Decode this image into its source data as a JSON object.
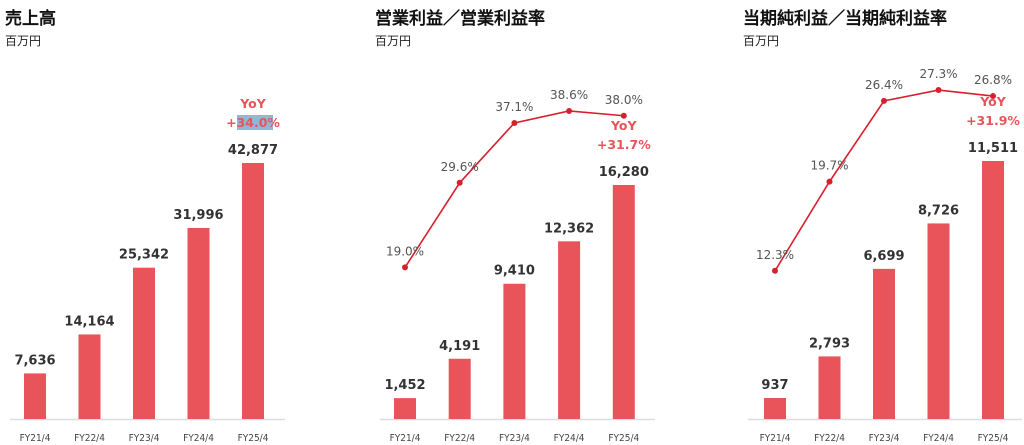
{
  "colors": {
    "bar": "#e8545a",
    "line": "#d7202e",
    "axis": "#dddddd",
    "highlight": "#8fb8d8"
  },
  "chart_data": [
    {
      "type": "bar",
      "title": "売上高",
      "unit": "百万円",
      "categories": [
        "FY21/4",
        "FY22/4",
        "FY23/4",
        "FY24/4",
        "FY25/4"
      ],
      "values": [
        7636,
        14164,
        25342,
        31996,
        42877
      ],
      "value_labels": [
        "7,636",
        "14,164",
        "25,342",
        "31,996",
        "42,877"
      ],
      "yoy_label": "YoY",
      "yoy_value": "+34.0%"
    },
    {
      "type": "bar+line",
      "title": "営業利益／営業利益率",
      "unit": "百万円",
      "categories": [
        "FY21/4",
        "FY22/4",
        "FY23/4",
        "FY24/4",
        "FY25/4"
      ],
      "values": [
        1452,
        4191,
        9410,
        12362,
        16280
      ],
      "value_labels": [
        "1,452",
        "4,191",
        "9,410",
        "12,362",
        "16,280"
      ],
      "rate": [
        19.0,
        29.6,
        37.1,
        38.6,
        38.0
      ],
      "rate_labels": [
        "19.0%",
        "29.6%",
        "37.1%",
        "38.6%",
        "38.0%"
      ],
      "yoy_label": "YoY",
      "yoy_value": "+31.7%"
    },
    {
      "type": "bar+line",
      "title": "当期純利益／当期純利益率",
      "unit": "百万円",
      "categories": [
        "FY21/4",
        "FY22/4",
        "FY23/4",
        "FY24/4",
        "FY25/4"
      ],
      "values": [
        937,
        2793,
        6699,
        8726,
        11511
      ],
      "value_labels": [
        "937",
        "2,793",
        "6,699",
        "8,726",
        "11,511"
      ],
      "rate": [
        12.3,
        19.7,
        26.4,
        27.3,
        26.8
      ],
      "rate_labels": [
        "12.3%",
        "19.7%",
        "26.4%",
        "27.3%",
        "26.8%"
      ],
      "yoy_label": "YoY",
      "yoy_value": "+31.9%"
    }
  ]
}
